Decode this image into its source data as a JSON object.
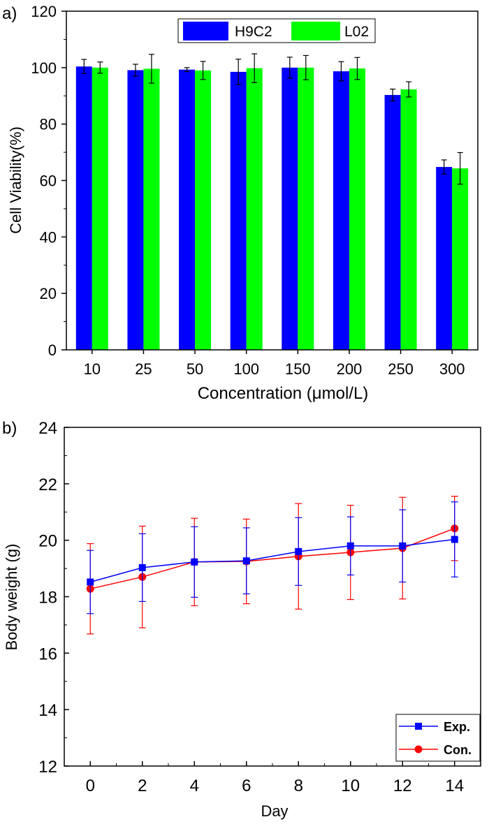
{
  "chart_data": [
    {
      "panel_label": "a)",
      "type": "bar",
      "title": "",
      "xlabel": "Concentration (μmol/L)",
      "ylabel": "Cell Viability(%)",
      "ylim": [
        0,
        120
      ],
      "yticks": [
        "0",
        "20",
        "40",
        "60",
        "80",
        "100",
        "120"
      ],
      "categories": [
        "10",
        "25",
        "50",
        "100",
        "150",
        "200",
        "250",
        "300"
      ],
      "legend_position": "top-right",
      "series": [
        {
          "name": "H9C2",
          "color": "#0000ff",
          "values": [
            100.4,
            99.1,
            99.3,
            98.5,
            100.0,
            98.7,
            90.3,
            64.8
          ],
          "errors": [
            2.5,
            2.1,
            0.7,
            4.5,
            3.7,
            3.4,
            2.1,
            2.5
          ]
        },
        {
          "name": "L02",
          "color": "#00ff00",
          "values": [
            100.0,
            99.6,
            99.0,
            99.8,
            100.0,
            99.7,
            92.3,
            64.3
          ],
          "errors": [
            2.0,
            5.1,
            3.2,
            5.1,
            4.3,
            3.9,
            2.7,
            5.6
          ]
        }
      ]
    },
    {
      "panel_label": "b)",
      "type": "line",
      "title": "",
      "xlabel": "Day",
      "ylabel": "Body weight (g)",
      "xlim": [
        -1,
        15
      ],
      "ylim": [
        12,
        24
      ],
      "xticks": [
        "0",
        "2",
        "4",
        "6",
        "8",
        "10",
        "12",
        "14"
      ],
      "yticks": [
        "12",
        "14",
        "16",
        "18",
        "20",
        "22",
        "24"
      ],
      "x": [
        0,
        2,
        4,
        6,
        8,
        10,
        12,
        14
      ],
      "legend_position": "bottom-right",
      "series": [
        {
          "name": "Exp.",
          "color": "#0000ff",
          "marker": "square",
          "values": [
            18.52,
            19.03,
            19.23,
            19.27,
            19.6,
            19.8,
            19.8,
            20.03
          ],
          "errors": [
            1.12,
            1.2,
            1.25,
            1.17,
            1.2,
            1.03,
            1.28,
            1.33
          ]
        },
        {
          "name": "Con.",
          "color": "#ff0000",
          "marker": "circle",
          "values": [
            18.28,
            18.7,
            19.23,
            19.25,
            19.43,
            19.57,
            19.72,
            20.42
          ],
          "errors": [
            1.6,
            1.8,
            1.55,
            1.5,
            1.87,
            1.67,
            1.8,
            1.14
          ]
        }
      ]
    }
  ]
}
